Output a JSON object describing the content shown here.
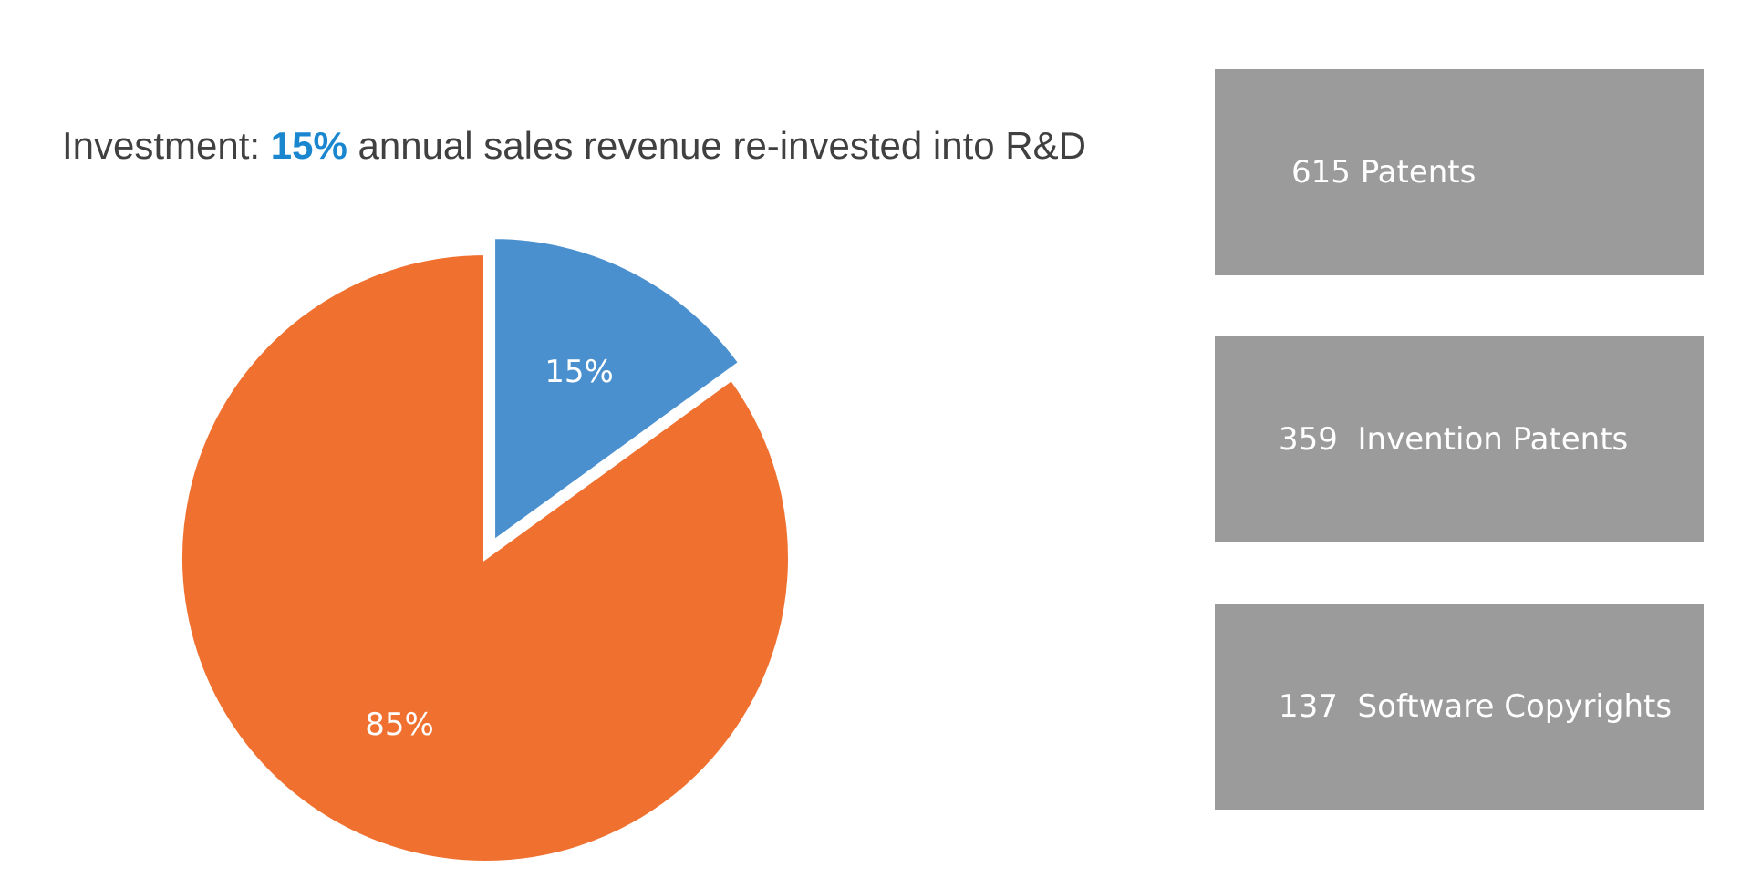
{
  "headline": {
    "prefix": "Investment: ",
    "highlight": "15%",
    "suffix": " annual sales revenue re-invested into R&D"
  },
  "colors": {
    "text": "#404040",
    "highlight": "#1a86d0",
    "slice_blue": "#4a90cf",
    "slice_orange": "#f07030",
    "stat_box": "#9b9b9b",
    "stat_text": "#ffffff"
  },
  "chart_data": {
    "type": "pie",
    "slices": [
      {
        "value": 15,
        "label": "15%",
        "color": "#4a90cf",
        "exploded": true
      },
      {
        "value": 85,
        "label": "85%",
        "color": "#f07030",
        "exploded": false
      }
    ]
  },
  "stats": [
    {
      "label": "615 Patents"
    },
    {
      "label": "359  Invention Patents"
    },
    {
      "label": "137  Software Copyrights"
    }
  ]
}
